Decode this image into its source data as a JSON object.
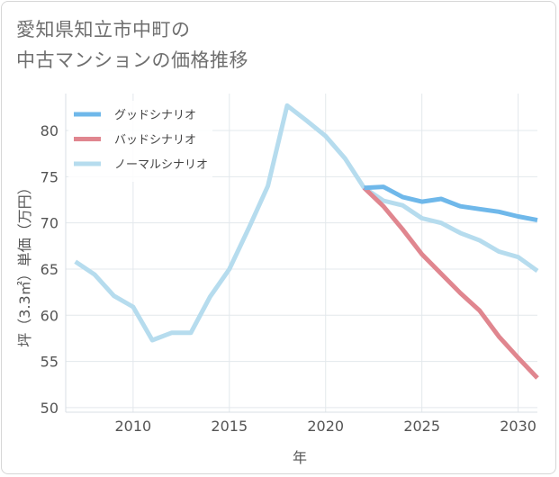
{
  "title": {
    "line1": "愛知県知立市中町の",
    "line2": "中古マンションの価格推移"
  },
  "chart_data": {
    "type": "line",
    "xlabel": "年",
    "ylabel": "坪（3.3㎡）単価（万円）",
    "xlim": [
      2006.5,
      2031
    ],
    "ylim": [
      49.5,
      84
    ],
    "xticks": [
      2010,
      2015,
      2020,
      2025,
      2030
    ],
    "yticks": [
      50,
      55,
      60,
      65,
      70,
      75,
      80
    ],
    "legend_position": "top-left",
    "series": [
      {
        "name": "グッドシナリオ",
        "color": "#6fb8ea",
        "x": [
          2022,
          2023,
          2024,
          2025,
          2026,
          2027,
          2028,
          2029,
          2030,
          2031
        ],
        "values": [
          73.8,
          73.9,
          72.8,
          72.3,
          72.6,
          71.8,
          71.5,
          71.2,
          70.7,
          70.3
        ]
      },
      {
        "name": "バッドシナリオ",
        "color": "#e0868f",
        "x": [
          2022,
          2023,
          2024,
          2025,
          2026,
          2027,
          2028,
          2029,
          2030,
          2031
        ],
        "values": [
          73.8,
          71.8,
          69.3,
          66.6,
          64.5,
          62.4,
          60.5,
          57.7,
          55.4,
          53.2
        ]
      },
      {
        "name": "ノーマルシナリオ",
        "color": "#b6dcee",
        "x": [
          2007,
          2008,
          2009,
          2010,
          2011,
          2012,
          2013,
          2014,
          2015,
          2016,
          2017,
          2018,
          2019,
          2020,
          2021,
          2022,
          2023,
          2024,
          2025,
          2026,
          2027,
          2028,
          2029,
          2030,
          2031
        ],
        "values": [
          65.8,
          64.4,
          62.1,
          60.9,
          57.3,
          58.1,
          58.1,
          62.0,
          65.0,
          69.4,
          74.0,
          82.7,
          81.1,
          79.4,
          77.0,
          73.8,
          72.4,
          71.9,
          70.5,
          70.0,
          68.9,
          68.1,
          66.9,
          66.3,
          64.8
        ]
      }
    ]
  }
}
